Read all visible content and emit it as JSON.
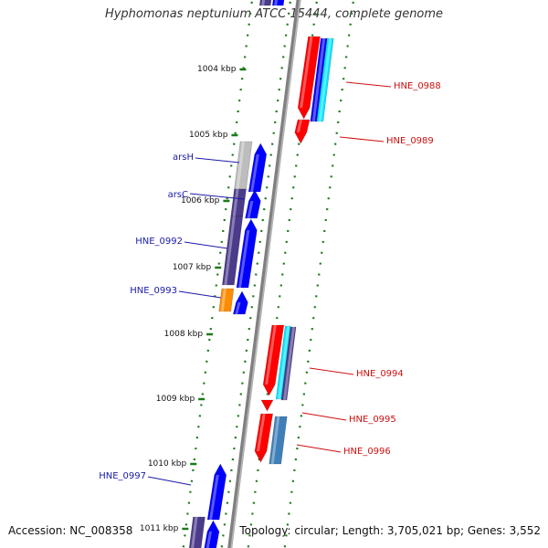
{
  "title": "Hyphomonas neptunium ATCC 15444, complete genome",
  "footer": {
    "accession": "Accession: NC_008358",
    "topology": "Topology: circular; Length: 3,705,021 bp; Genes: 3,552"
  },
  "colors": {
    "backbone": "#808080",
    "tick": "#1a7a1a",
    "forward_label": "#1a1aaa",
    "reverse_label": "#cc1111",
    "red": "#ff0000",
    "blue": "#0000ff",
    "cyan": "#00e5ff",
    "gray": "#bdbdbd",
    "slate": "#4b3b8a",
    "orange": "#ff8c00",
    "steel": "#3f7fb8"
  },
  "scale_ticks": [
    {
      "label": "1004 kbp"
    },
    {
      "label": "1005 kbp"
    },
    {
      "label": "1006 kbp"
    },
    {
      "label": "1007 kbp"
    },
    {
      "label": "1008 kbp"
    },
    {
      "label": "1009 kbp"
    },
    {
      "label": "1010 kbp"
    },
    {
      "label": "1011 kbp"
    }
  ],
  "gene_labels": [
    {
      "text": "HNE_0988",
      "strand": "reverse"
    },
    {
      "text": "HNE_0989",
      "strand": "reverse"
    },
    {
      "text": "arsH",
      "strand": "forward"
    },
    {
      "text": "arsC",
      "strand": "forward"
    },
    {
      "text": "HNE_0992",
      "strand": "forward"
    },
    {
      "text": "HNE_0993",
      "strand": "forward"
    },
    {
      "text": "HNE_0994",
      "strand": "reverse"
    },
    {
      "text": "HNE_0995",
      "strand": "reverse"
    },
    {
      "text": "HNE_0996",
      "strand": "reverse"
    },
    {
      "text": "HNE_0997",
      "strand": "forward"
    }
  ]
}
